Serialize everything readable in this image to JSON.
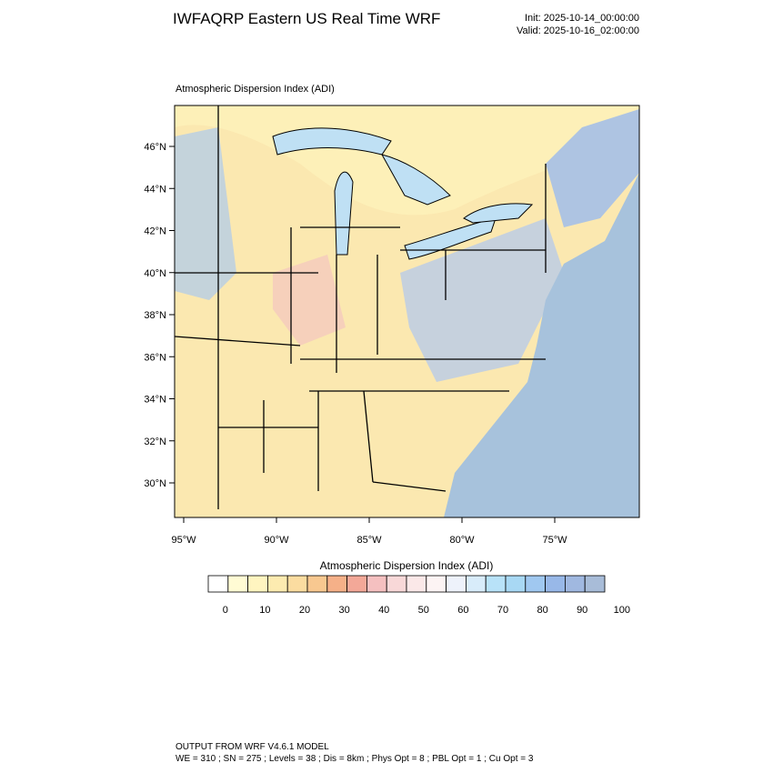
{
  "header": {
    "title": "IWFAQRP Eastern US Real Time WRF",
    "init": "Init: 2025-10-14_00:00:00",
    "valid": "Valid: 2025-10-16_02:00:00"
  },
  "map": {
    "subtitle": "Atmospheric Dispersion Index   (ADI)",
    "lat_ticks": [
      {
        "value": 30,
        "label": "30°N"
      },
      {
        "value": 32,
        "label": "32°N"
      },
      {
        "value": 34,
        "label": "34°N"
      },
      {
        "value": 36,
        "label": "36°N"
      },
      {
        "value": 38,
        "label": "38°N"
      },
      {
        "value": 40,
        "label": "40°N"
      },
      {
        "value": 42,
        "label": "42°N"
      },
      {
        "value": 44,
        "label": "44°N"
      },
      {
        "value": 46,
        "label": "46°N"
      }
    ],
    "lon_ticks": [
      {
        "value": -95,
        "label": "95°W"
      },
      {
        "value": -90,
        "label": "90°W"
      },
      {
        "value": -85,
        "label": "85°W"
      },
      {
        "value": -80,
        "label": "80°W"
      },
      {
        "value": -75,
        "label": "75°W"
      }
    ]
  },
  "colorbar": {
    "title": "Atmospheric Dispersion Index  (ADI)",
    "colors": [
      "#ffffff",
      "#fffbd4",
      "#fff5c0",
      "#fdebb0",
      "#fbdca0",
      "#f8c890",
      "#f5b088",
      "#f3a898",
      "#f5c0c0",
      "#f8d8d8",
      "#fbe8e8",
      "#fdf4f4",
      "#eef2fb",
      "#d8ecfa",
      "#b8e2f8",
      "#a8d8f4",
      "#a0c8f0",
      "#98b8e8",
      "#a0b8e0",
      "#a8bcd8"
    ],
    "ticks": [
      0,
      10,
      20,
      30,
      40,
      50,
      60,
      70,
      80,
      90,
      100
    ]
  },
  "footer": {
    "line1": "OUTPUT FROM WRF V4.6.1 MODEL",
    "line2": "WE = 310 ; SN = 275 ; Levels = 38 ; Dis = 8km ; Phys Opt = 8 ; PBL Opt = 1 ; Cu Opt = 3"
  }
}
